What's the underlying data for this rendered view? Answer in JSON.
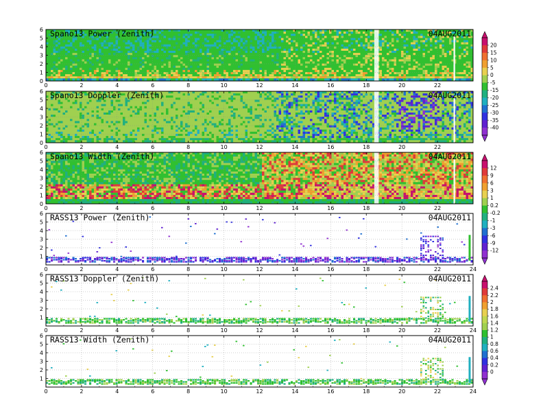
{
  "chart_data": {
    "type": "heatmap",
    "x_axis": {
      "range": [
        0,
        24
      ],
      "ticks": [
        0,
        2,
        4,
        6,
        8,
        10,
        12,
        14,
        16,
        18,
        20,
        22,
        24
      ]
    },
    "y_axis": {
      "range": [
        0,
        6
      ],
      "ticks": [
        0,
        1,
        2,
        3,
        4,
        5,
        6
      ]
    },
    "grid": true,
    "panels": [
      {
        "title": "Spano13 Power (Zenith)",
        "date": "04AUG2011",
        "x_tick_labels": [
          "0",
          "2",
          "4",
          "6",
          "8",
          "10",
          "12",
          "14",
          "16",
          "18",
          "20",
          "22"
        ],
        "y_tick_labels": [
          "0",
          "1",
          "2",
          "3",
          "4",
          "5",
          "6"
        ],
        "colorbar": 0
      },
      {
        "title": "Spano13 Doppler (Zenith)",
        "date": "04AUG2011",
        "x_tick_labels": [
          "0",
          "2",
          "4",
          "6",
          "8",
          "10",
          "12",
          "14",
          "16",
          "18",
          "20",
          "22"
        ],
        "y_tick_labels": [
          "0",
          "1",
          "2",
          "3",
          "4",
          "5",
          "6"
        ],
        "colorbar": 0
      },
      {
        "title": "Spano13 Width (Zenith)",
        "date": "04AUG2011",
        "x_tick_labels": [
          "0",
          "2",
          "4",
          "6",
          "8",
          "10",
          "12",
          "14",
          "16",
          "18",
          "20",
          "22"
        ],
        "y_tick_labels": [
          "0",
          "1",
          "2",
          "3",
          "4",
          "5",
          "6"
        ],
        "colorbar": 1
      },
      {
        "title": "RASS13 Power (Zenith)",
        "date": "04AUG2011",
        "x_tick_labels": [
          "0",
          "2",
          "4",
          "6",
          "8",
          "10",
          "12",
          "14",
          "16",
          "18",
          "20",
          "22",
          "24"
        ],
        "y_tick_labels": [
          "1",
          "2",
          "3",
          "4",
          "5",
          "6"
        ],
        "colorbar": 1
      },
      {
        "title": "RASS13 Doppler (Zenith)",
        "date": "04AUG2011",
        "x_tick_labels": [
          "0",
          "2",
          "4",
          "6",
          "8",
          "10",
          "12",
          "14",
          "16",
          "18",
          "20",
          "22",
          "24"
        ],
        "y_tick_labels": [
          "1",
          "2",
          "3",
          "4",
          "5",
          "6"
        ],
        "colorbar": 2
      },
      {
        "title": "RASS13 Width (Zenith)",
        "date": "04AUG2011",
        "x_tick_labels": [
          "0",
          "2",
          "4",
          "6",
          "8",
          "10",
          "12",
          "14",
          "16",
          "18",
          "20",
          "22",
          "24"
        ],
        "y_tick_labels": [
          "1",
          "2",
          "3",
          "4",
          "5",
          "6"
        ],
        "colorbar": 2
      }
    ],
    "colorbars": [
      {
        "labels": [
          "20",
          "15",
          "10",
          "5",
          "0",
          "-5",
          "-15",
          "-20",
          "-25",
          "-30",
          "-35",
          "-40"
        ],
        "colors": [
          "#c8106e",
          "#e03a3a",
          "#f07030",
          "#f0a030",
          "#e8d050",
          "#a0d050",
          "#30c030",
          "#20b080",
          "#20b0c0",
          "#2070d0",
          "#3030e0",
          "#6020d0",
          "#9030d0"
        ]
      },
      {
        "labels": [
          "12",
          "9",
          "6",
          "3",
          "1",
          "0.2",
          "-0.2",
          "-1",
          "-3",
          "-6",
          "-9",
          "-12"
        ],
        "colors": [
          "#c8106e",
          "#e03a3a",
          "#f07030",
          "#f0a030",
          "#e8d050",
          "#a0d050",
          "#30c030",
          "#20b080",
          "#20b0c0",
          "#2070d0",
          "#3030e0",
          "#6020d0",
          "#9030d0"
        ]
      },
      {
        "labels": [
          "2.4",
          "2.2",
          "2",
          "1.8",
          "1.6",
          "1.4",
          "1.2",
          "1",
          "0.8",
          "0.6",
          "0.4",
          "0.2",
          "0"
        ],
        "colors": [
          "#c8106e",
          "#e03a3a",
          "#f07030",
          "#f0a030",
          "#e8d050",
          "#c0d850",
          "#a0d050",
          "#30c030",
          "#20b080",
          "#20b0c0",
          "#2070d0",
          "#3030e0",
          "#6020d0",
          "#9030d0"
        ]
      }
    ]
  }
}
